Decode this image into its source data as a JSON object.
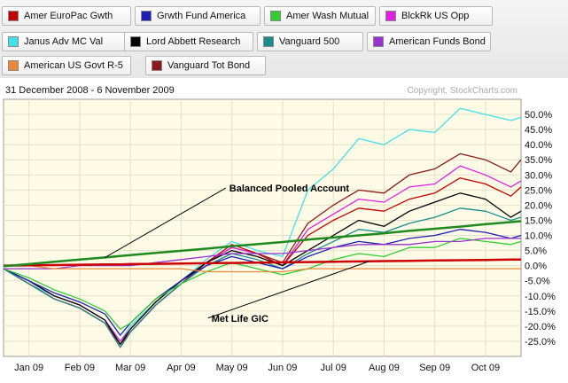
{
  "colors": {
    "plot_bg": "#fdfbe6",
    "grid": "#e2e0c8",
    "balanced_line": "#1f8a1f",
    "gic_line": "#cc0000"
  },
  "chart_data": {
    "type": "line",
    "title": "",
    "date_range": "31 December 2008 - 6 November 2009",
    "copyright": "Copyright, StockCharts.com",
    "ylabel": "",
    "xlabel": "",
    "ylim": [
      -30,
      55
    ],
    "y_ticks": [
      "50.0%",
      "45.0%",
      "40.0%",
      "35.0%",
      "30.0%",
      "25.0%",
      "20.0%",
      "15.0%",
      "10.0%",
      "5.0%",
      "0.0%",
      "-5.0%",
      "-10.0%",
      "-15.0%",
      "-20.0%",
      "-25.0%"
    ],
    "y_tick_values": [
      50,
      45,
      40,
      35,
      30,
      25,
      20,
      15,
      10,
      5,
      0,
      -5,
      -10,
      -15,
      -20,
      -25
    ],
    "x_ticks": [
      {
        "label": "Jan 09",
        "x": 0.5
      },
      {
        "label": "Feb 09",
        "x": 1.5
      },
      {
        "label": "Mar 09",
        "x": 2.5
      },
      {
        "label": "Apr 09",
        "x": 3.5
      },
      {
        "label": "May 09",
        "x": 4.5
      },
      {
        "label": "Jun 09",
        "x": 5.5
      },
      {
        "label": "Jul 09",
        "x": 6.5
      },
      {
        "label": "Aug 09",
        "x": 7.5
      },
      {
        "label": "Sep 09",
        "x": 8.5
      },
      {
        "label": "Oct 09",
        "x": 9.5
      }
    ],
    "x_range": [
      0,
      10.2
    ],
    "x": [
      0,
      0.5,
      1,
      1.5,
      2,
      2.3,
      2.5,
      3,
      3.5,
      4,
      4.5,
      5,
      5.5,
      6,
      6.5,
      7,
      7.5,
      8,
      8.5,
      9,
      9.5,
      10,
      10.2
    ],
    "legend": [
      {
        "label": "Amer EuroPac Gwth",
        "color": "#c00000"
      },
      {
        "label": "Grwth Fund America",
        "color": "#1f1fb4"
      },
      {
        "label": "Amer Wash Mutual",
        "color": "#33cc33"
      },
      {
        "label": "BlckRk US Opp",
        "color": "#e020e0"
      },
      {
        "label": "Janus Adv MC Val",
        "color": "#44e0e8"
      },
      {
        "label": "Lord Abbett Research",
        "color": "#000000"
      },
      {
        "label": "Vanguard 500",
        "color": "#1a8c8c"
      },
      {
        "label": "American Funds Bond",
        "color": "#9933cc"
      },
      {
        "label": "American US Govt R-5",
        "color": "#e8883a"
      },
      {
        "label": "Vanguard Tot Bond",
        "color": "#8b1a1a"
      }
    ],
    "series": [
      {
        "color": "#44e0e8",
        "width": 1.3,
        "values": [
          -1,
          -6,
          -10,
          -13,
          -18,
          -25,
          -20,
          -12,
          -5,
          2,
          8,
          5,
          3,
          25,
          32,
          42,
          40,
          45,
          44,
          52,
          50,
          48,
          49
        ]
      },
      {
        "color": "#8b1a1a",
        "width": 1.3,
        "values": [
          -1,
          -6,
          -11,
          -14,
          -19,
          -26,
          -22,
          -13,
          -6,
          1,
          6,
          4,
          1,
          14,
          20,
          25,
          24,
          30,
          32,
          37,
          35,
          31,
          35
        ]
      },
      {
        "color": "#e020e0",
        "width": 1.3,
        "values": [
          -1,
          -5,
          -10,
          -13,
          -18,
          -25,
          -21,
          -12,
          -5,
          1,
          6,
          4,
          0,
          12,
          17,
          22,
          21,
          26,
          27,
          33,
          30,
          26,
          28
        ]
      },
      {
        "color": "#c00000",
        "width": 1.3,
        "values": [
          -1,
          -6,
          -11,
          -14,
          -19,
          -27,
          -22,
          -13,
          -6,
          1,
          7,
          4,
          0,
          10,
          15,
          19,
          18,
          22,
          24,
          29,
          27,
          23,
          26
        ]
      },
      {
        "color": "#000000",
        "width": 1.3,
        "values": [
          -1,
          -5,
          -10,
          -13,
          -18,
          -26,
          -21,
          -12,
          -5,
          1,
          5,
          3,
          0,
          5,
          10,
          15,
          13,
          18,
          21,
          24,
          22,
          16,
          18
        ]
      },
      {
        "color": "#1a8c8c",
        "width": 1.3,
        "values": [
          -1,
          -6,
          -11,
          -14,
          -19,
          -27,
          -22,
          -13,
          -6,
          0,
          4,
          2,
          -1,
          4,
          8,
          12,
          11,
          14,
          16,
          19,
          18,
          15,
          16
        ]
      },
      {
        "color": "#1f1fb4",
        "width": 1.3,
        "values": [
          -1,
          -5,
          -9,
          -12,
          -16,
          -23,
          -19,
          -11,
          -5,
          0,
          3,
          1,
          -1,
          3,
          6,
          8,
          7,
          9,
          10,
          12,
          11,
          9,
          10
        ]
      },
      {
        "color": "#33cc33",
        "width": 1.3,
        "values": [
          -1,
          -4,
          -8,
          -11,
          -15,
          -21,
          -19,
          -11,
          -6,
          -2,
          1,
          -1,
          -3,
          -1,
          2,
          4,
          3,
          6,
          6,
          9,
          8,
          7,
          8
        ]
      },
      {
        "color": "#9933cc",
        "width": 1.3,
        "values": [
          -1,
          -1,
          -1,
          0,
          0,
          0,
          0,
          1,
          2,
          3,
          4,
          4,
          4,
          5,
          6,
          7,
          7,
          7,
          8,
          8,
          9,
          9,
          9
        ]
      },
      {
        "color": "#e8883a",
        "width": 1.3,
        "values": [
          0,
          0,
          -1,
          -1,
          -1,
          -1,
          -1,
          -1,
          -1,
          -2,
          -2,
          -2,
          -2,
          -1,
          -1,
          -1,
          -1,
          -1,
          -1,
          -1,
          -1,
          -1,
          -1
        ]
      },
      {
        "color": "#cc0000",
        "width": 2.5,
        "values": [
          0,
          0.1,
          0.2,
          0.3,
          0.4,
          0.4,
          0.5,
          0.6,
          0.7,
          0.8,
          0.9,
          1.0,
          1.1,
          1.2,
          1.3,
          1.4,
          1.5,
          1.6,
          1.7,
          1.8,
          1.9,
          2.0,
          2.0
        ]
      },
      {
        "color": "#1f8a1f",
        "width": 2.5,
        "values": [
          -0.2,
          0.5,
          1.3,
          2.0,
          2.7,
          3.2,
          3.5,
          4.2,
          4.9,
          5.6,
          6.4,
          7.1,
          7.8,
          8.6,
          9.3,
          10.0,
          10.7,
          11.5,
          12.2,
          12.9,
          13.7,
          14.4,
          14.7
        ]
      }
    ],
    "annotations": [
      {
        "text": "Balanced Pooled Account",
        "x": 4.45,
        "y": 24.5,
        "target_x": 2.0,
        "target_y": 2.7
      },
      {
        "text": "Met Life GIC",
        "x": 4.1,
        "y": -18.5,
        "target_x": 7.2,
        "target_y": 1.4
      }
    ]
  }
}
